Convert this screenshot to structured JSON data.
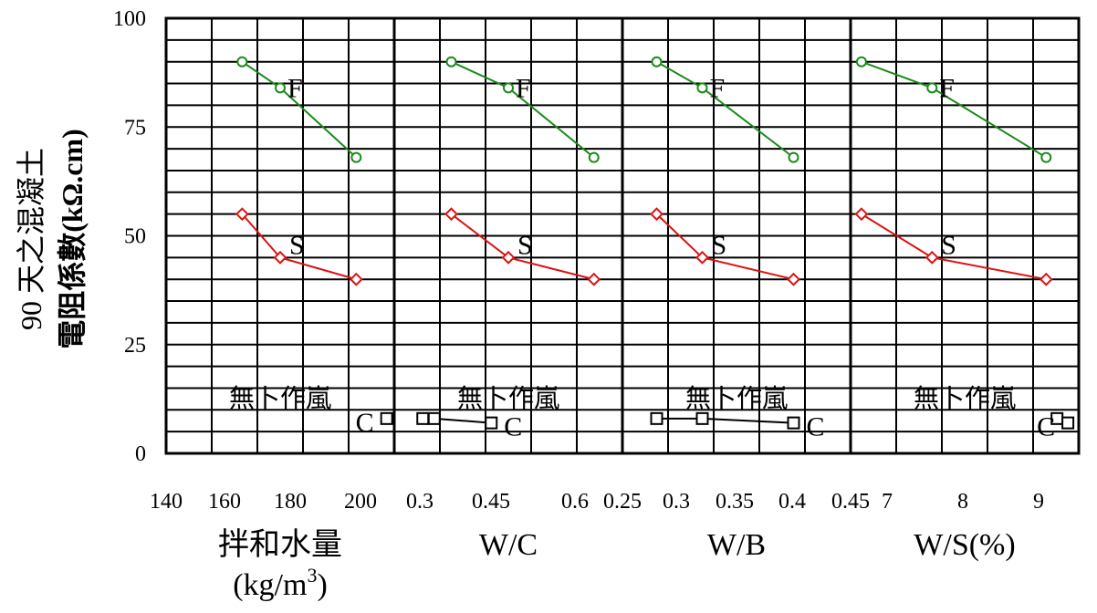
{
  "chart_data": {
    "type": "line",
    "ylabel_line1": "90 天之混凝土",
    "ylabel_line2": "電阻係數(kΩ.cm)",
    "ylim": [
      0,
      100
    ],
    "yticks": [
      "0",
      "25",
      "50",
      "75",
      "100"
    ],
    "colors": {
      "F": "#1a8a1a",
      "S": "#dd1111",
      "C": "#000000"
    },
    "panels": [
      {
        "xlabel": "拌和水量",
        "xunit": "(kg/m",
        "xunit_sup": "3",
        "xunit_close": ")",
        "xlim": [
          140,
          200
        ],
        "xticks": [
          "140",
          "160",
          "180",
          "200"
        ],
        "annotation": "無卜作嵐",
        "series": [
          {
            "name": "F",
            "marker": "circle",
            "x": [
              160,
              170,
              190
            ],
            "y": [
              90,
              84,
              68
            ]
          },
          {
            "name": "S",
            "marker": "diamond",
            "x": [
              160,
              170,
              190
            ],
            "y": [
              55,
              45,
              40
            ]
          },
          {
            "name": "C",
            "marker": "square",
            "x": [
              198
            ],
            "y": [
              8
            ]
          }
        ]
      },
      {
        "xlabel": "W/C",
        "xlim": [
          0.25,
          0.65
        ],
        "xticks": [
          "0.3",
          "0.45",
          "0.6"
        ],
        "annotation": "無卜作嵐",
        "series": [
          {
            "name": "F",
            "marker": "circle",
            "x": [
              0.35,
              0.45,
              0.6
            ],
            "y": [
              90,
              84,
              68
            ]
          },
          {
            "name": "S",
            "marker": "diamond",
            "x": [
              0.35,
              0.45,
              0.6
            ],
            "y": [
              55,
              45,
              40
            ]
          },
          {
            "name": "C",
            "marker": "square",
            "x": [
              0.3,
              0.32,
              0.42
            ],
            "y": [
              8,
              8,
              7
            ]
          }
        ]
      },
      {
        "xlabel": "W/B",
        "xlim": [
          0.25,
          0.45
        ],
        "xticks": [
          "0.25",
          "0.3",
          "0.35",
          "0.4",
          "0.45"
        ],
        "annotation": "無卜作嵐",
        "series": [
          {
            "name": "F",
            "marker": "circle",
            "x": [
              0.28,
              0.32,
              0.4
            ],
            "y": [
              90,
              84,
              68
            ]
          },
          {
            "name": "S",
            "marker": "diamond",
            "x": [
              0.28,
              0.32,
              0.4
            ],
            "y": [
              55,
              45,
              40
            ]
          },
          {
            "name": "C",
            "marker": "square",
            "x": [
              0.28,
              0.32,
              0.4
            ],
            "y": [
              8,
              8,
              7
            ]
          }
        ]
      },
      {
        "xlabel": "W/S(%)",
        "xlim": [
          7,
          9.1
        ],
        "xticks": [
          "7",
          "8",
          "9"
        ],
        "annotation": "無卜作嵐",
        "series": [
          {
            "name": "F",
            "marker": "circle",
            "x": [
              7.1,
              7.75,
              8.8
            ],
            "y": [
              90,
              84,
              68
            ]
          },
          {
            "name": "S",
            "marker": "diamond",
            "x": [
              7.1,
              7.75,
              8.8
            ],
            "y": [
              55,
              45,
              40
            ]
          },
          {
            "name": "C",
            "marker": "square",
            "x": [
              8.9,
              9.0
            ],
            "y": [
              8,
              7
            ]
          }
        ]
      }
    ]
  }
}
